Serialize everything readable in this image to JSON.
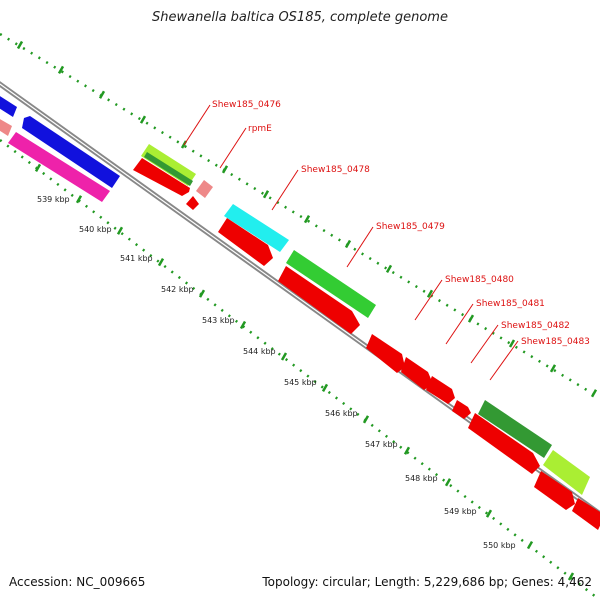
{
  "title": "Shewanella baltica OS185, complete genome",
  "footer": {
    "accession": "Accession: NC_009665",
    "summary": "Topology: circular; Length: 5,229,686 bp; Genes: 4,462"
  },
  "colors": {
    "cds": "#ee0000",
    "gene_blue": "#1111dd",
    "gene_magenta": "#ee22aa",
    "gene_lime": "#aaee33",
    "gene_darkgreen": "#339933",
    "gene_cyan": "#22eeee",
    "gene_green": "#33cc33",
    "gene_pink": "#ee8888",
    "backbone": "#888888",
    "ticks": "#229922",
    "label": "#dd1111"
  },
  "kbp_labels": [
    "539 kbp",
    "540 kbp",
    "541 kbp",
    "542 kbp",
    "543 kbp",
    "544 kbp",
    "545 kbp",
    "546 kbp",
    "547 kbp",
    "548 kbp",
    "549 kbp",
    "550 kbp"
  ],
  "gene_labels": [
    "Shew185_0476",
    "rpmE",
    "Shew185_0478",
    "Shew185_0479",
    "Shew185_0480",
    "Shew185_0481",
    "Shew185_0482",
    "Shew185_0483"
  ]
}
